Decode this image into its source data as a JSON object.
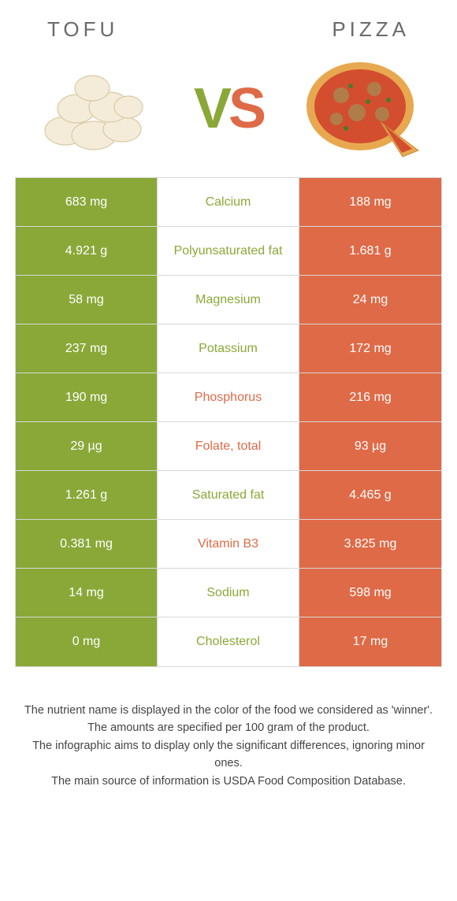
{
  "header": {
    "left_title": "Tofu",
    "right_title": "Pizza"
  },
  "vs": {
    "v": "V",
    "s": "S"
  },
  "colors": {
    "tofu": "#8aa838",
    "pizza": "#df6a47",
    "row_border": "#d8d8d8",
    "background": "#ffffff",
    "text_dark": "#444444"
  },
  "rows": [
    {
      "nutrient": "Calcium",
      "left": "683 mg",
      "right": "188 mg",
      "winner": "tofu"
    },
    {
      "nutrient": "Polyunsaturated fat",
      "left": "4.921 g",
      "right": "1.681 g",
      "winner": "tofu"
    },
    {
      "nutrient": "Magnesium",
      "left": "58 mg",
      "right": "24 mg",
      "winner": "tofu"
    },
    {
      "nutrient": "Potassium",
      "left": "237 mg",
      "right": "172 mg",
      "winner": "tofu"
    },
    {
      "nutrient": "Phosphorus",
      "left": "190 mg",
      "right": "216 mg",
      "winner": "pizza"
    },
    {
      "nutrient": "Folate, total",
      "left": "29 µg",
      "right": "93 µg",
      "winner": "pizza"
    },
    {
      "nutrient": "Saturated fat",
      "left": "1.261 g",
      "right": "4.465 g",
      "winner": "tofu"
    },
    {
      "nutrient": "Vitamin B3",
      "left": "0.381 mg",
      "right": "3.825 mg",
      "winner": "pizza"
    },
    {
      "nutrient": "Sodium",
      "left": "14 mg",
      "right": "598 mg",
      "winner": "tofu"
    },
    {
      "nutrient": "Cholesterol",
      "left": "0 mg",
      "right": "17 mg",
      "winner": "tofu"
    }
  ],
  "footer": {
    "line1": "The nutrient name is displayed in the color of the food we considered as 'winner'.",
    "line2": "The amounts are specified per 100 gram of the product.",
    "line3": "The infographic aims to display only the significant differences, ignoring minor ones.",
    "line4": "The main source of information is USDA Food Composition Database."
  }
}
